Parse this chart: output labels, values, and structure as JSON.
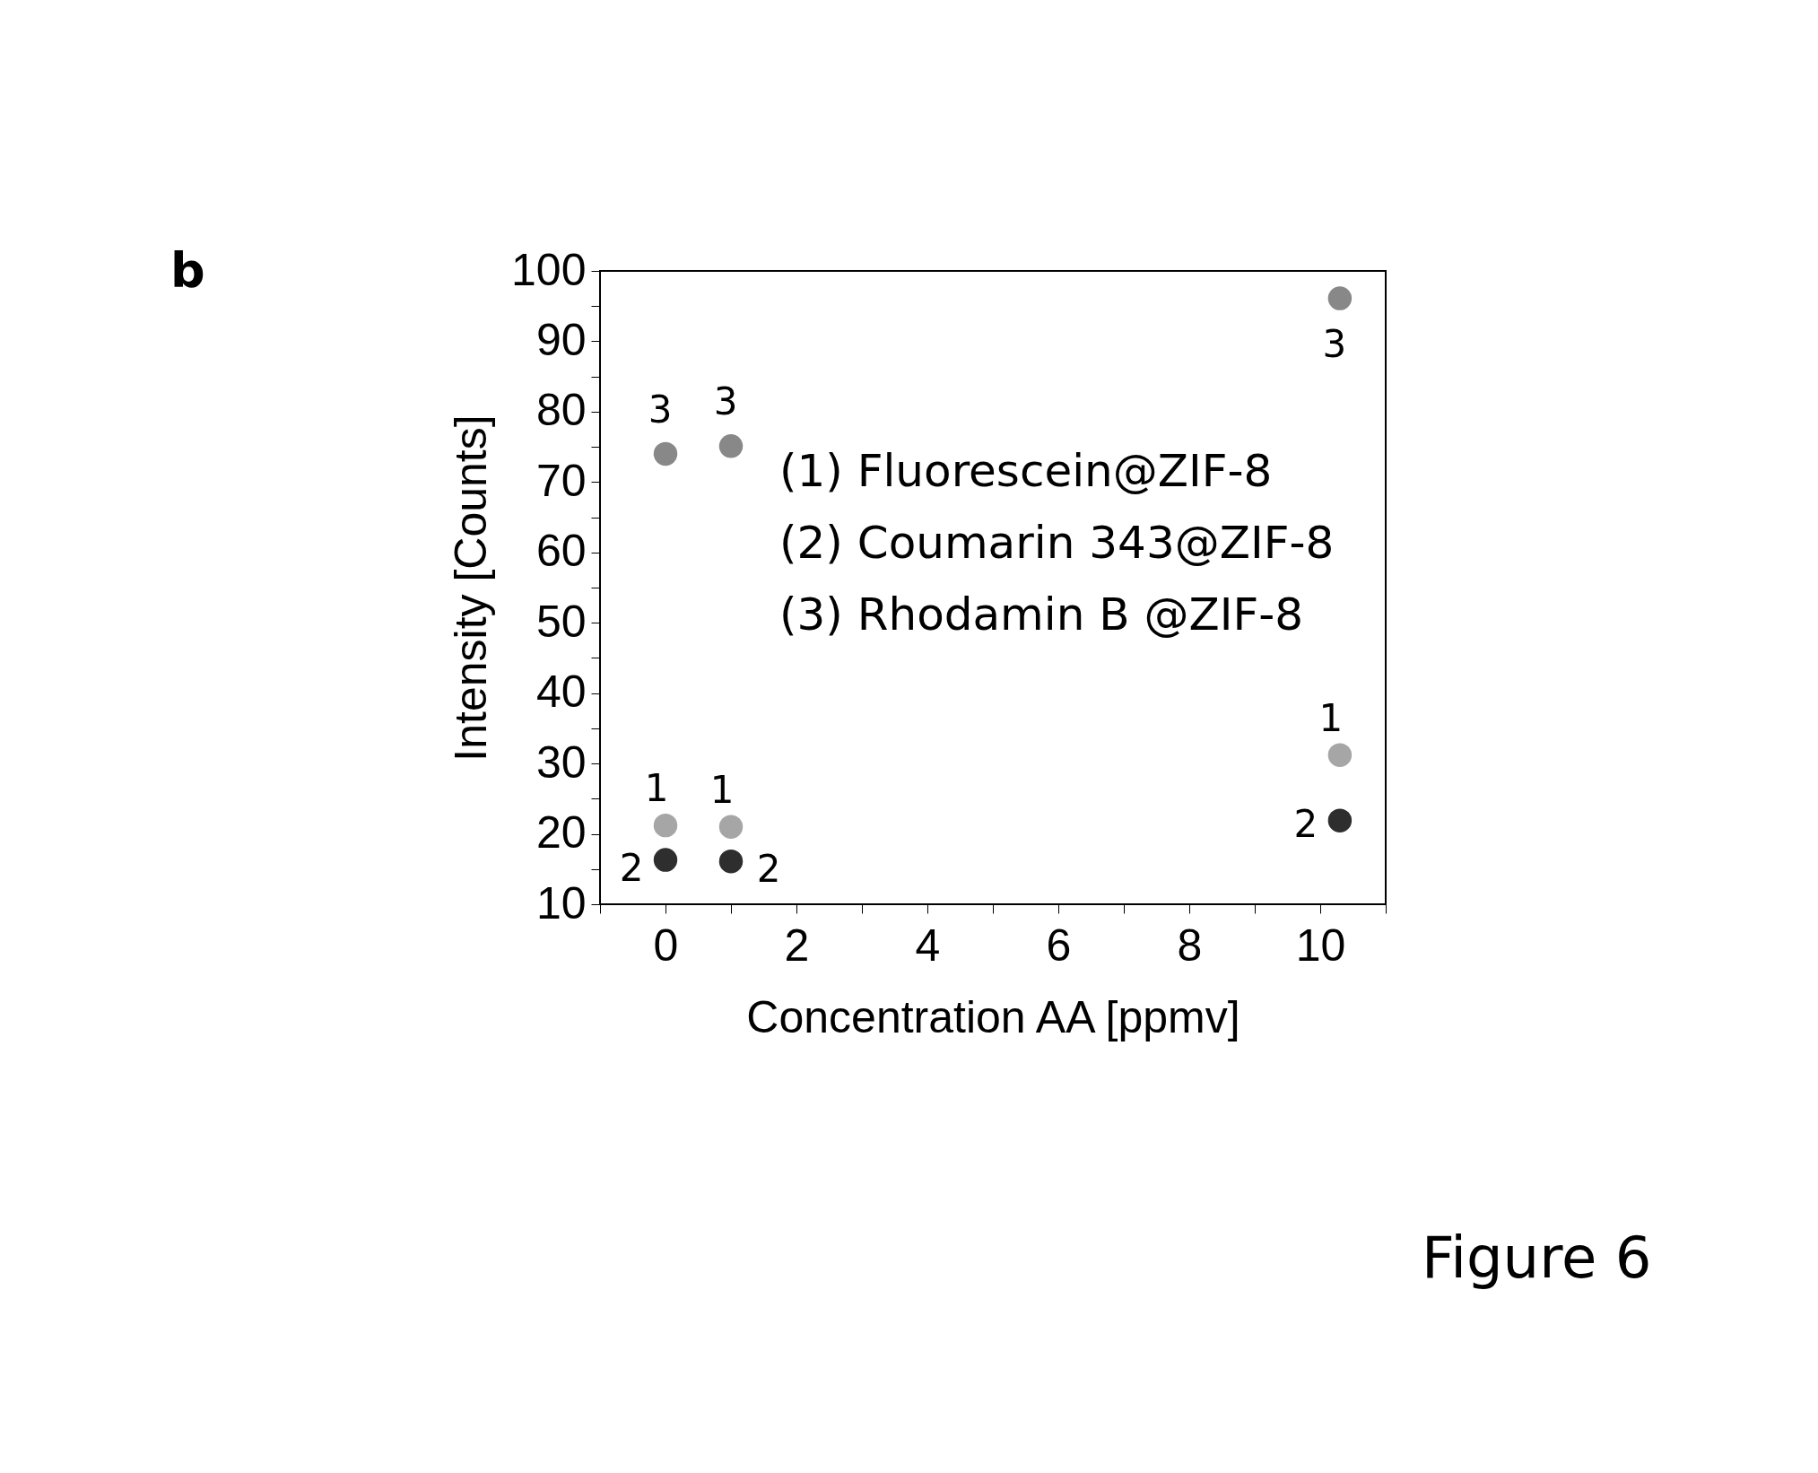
{
  "chart_data": {
    "type": "scatter",
    "title": "b",
    "xlabel": "Concentration AA [ppmv]",
    "ylabel": "Intensity [Counts]",
    "x": [
      0,
      1,
      10.3
    ],
    "series": [
      {
        "color": "#a6a6a6",
        "values": [
          21.2,
          21.0,
          31.2
        ]
      },
      {
        "color": "#2e2e2e",
        "values": [
          16.3,
          16.1,
          21.9
        ]
      },
      {
        "color": "#888888",
        "values": [
          74.0,
          75.1,
          96.1
        ]
      }
    ],
    "marker": "circle",
    "xlim": [
      -1,
      11
    ],
    "xticks": [
      {
        "value": -1,
        "label": null
      },
      0,
      {
        "value": 1,
        "label": null
      },
      2,
      {
        "value": 3,
        "label": null
      },
      4,
      {
        "value": 5,
        "label": null
      },
      6,
      {
        "value": 7,
        "label": null
      },
      8,
      {
        "value": 9,
        "label": null
      },
      10,
      {
        "value": 11,
        "label": null
      }
    ],
    "ylim": [
      10,
      100
    ],
    "yticks": [
      10,
      {
        "value": 15,
        "label": null
      },
      20,
      {
        "value": 25,
        "label": null
      },
      30,
      {
        "value": 35,
        "label": null
      },
      40,
      {
        "value": 45,
        "label": null
      },
      50,
      {
        "value": 55,
        "label": null
      },
      60,
      {
        "value": 65,
        "label": null
      },
      70,
      {
        "value": 75,
        "label": null
      },
      80,
      {
        "value": 85,
        "label": null
      },
      90,
      {
        "value": 95,
        "label": null
      },
      100
    ],
    "grid": false,
    "legend": false,
    "annotations": [
      "(1) Fluorescein@ZIF-8",
      "(2) Coumarin 343@ZIF-8",
      "(3) Rhodamin B @ZIF-8",
      "Figure 6",
      {
        "text": "1",
        "x": 0,
        "y": 21.2
      },
      {
        "text": "1",
        "x": 1,
        "y": 21.0
      },
      {
        "text": "1",
        "x": 10.3,
        "y": 31.2
      },
      {
        "text": "2",
        "x": 0,
        "y": 16.3
      },
      {
        "text": "2",
        "x": 1,
        "y": 16.1
      },
      {
        "text": "2",
        "x": 10.3,
        "y": 21.9
      },
      {
        "text": "3",
        "x": 0,
        "y": 74.0
      },
      {
        "text": "3",
        "x": 1,
        "y": 75.1
      },
      {
        "text": "3",
        "x": 10.3,
        "y": 96.1
      }
    ]
  }
}
